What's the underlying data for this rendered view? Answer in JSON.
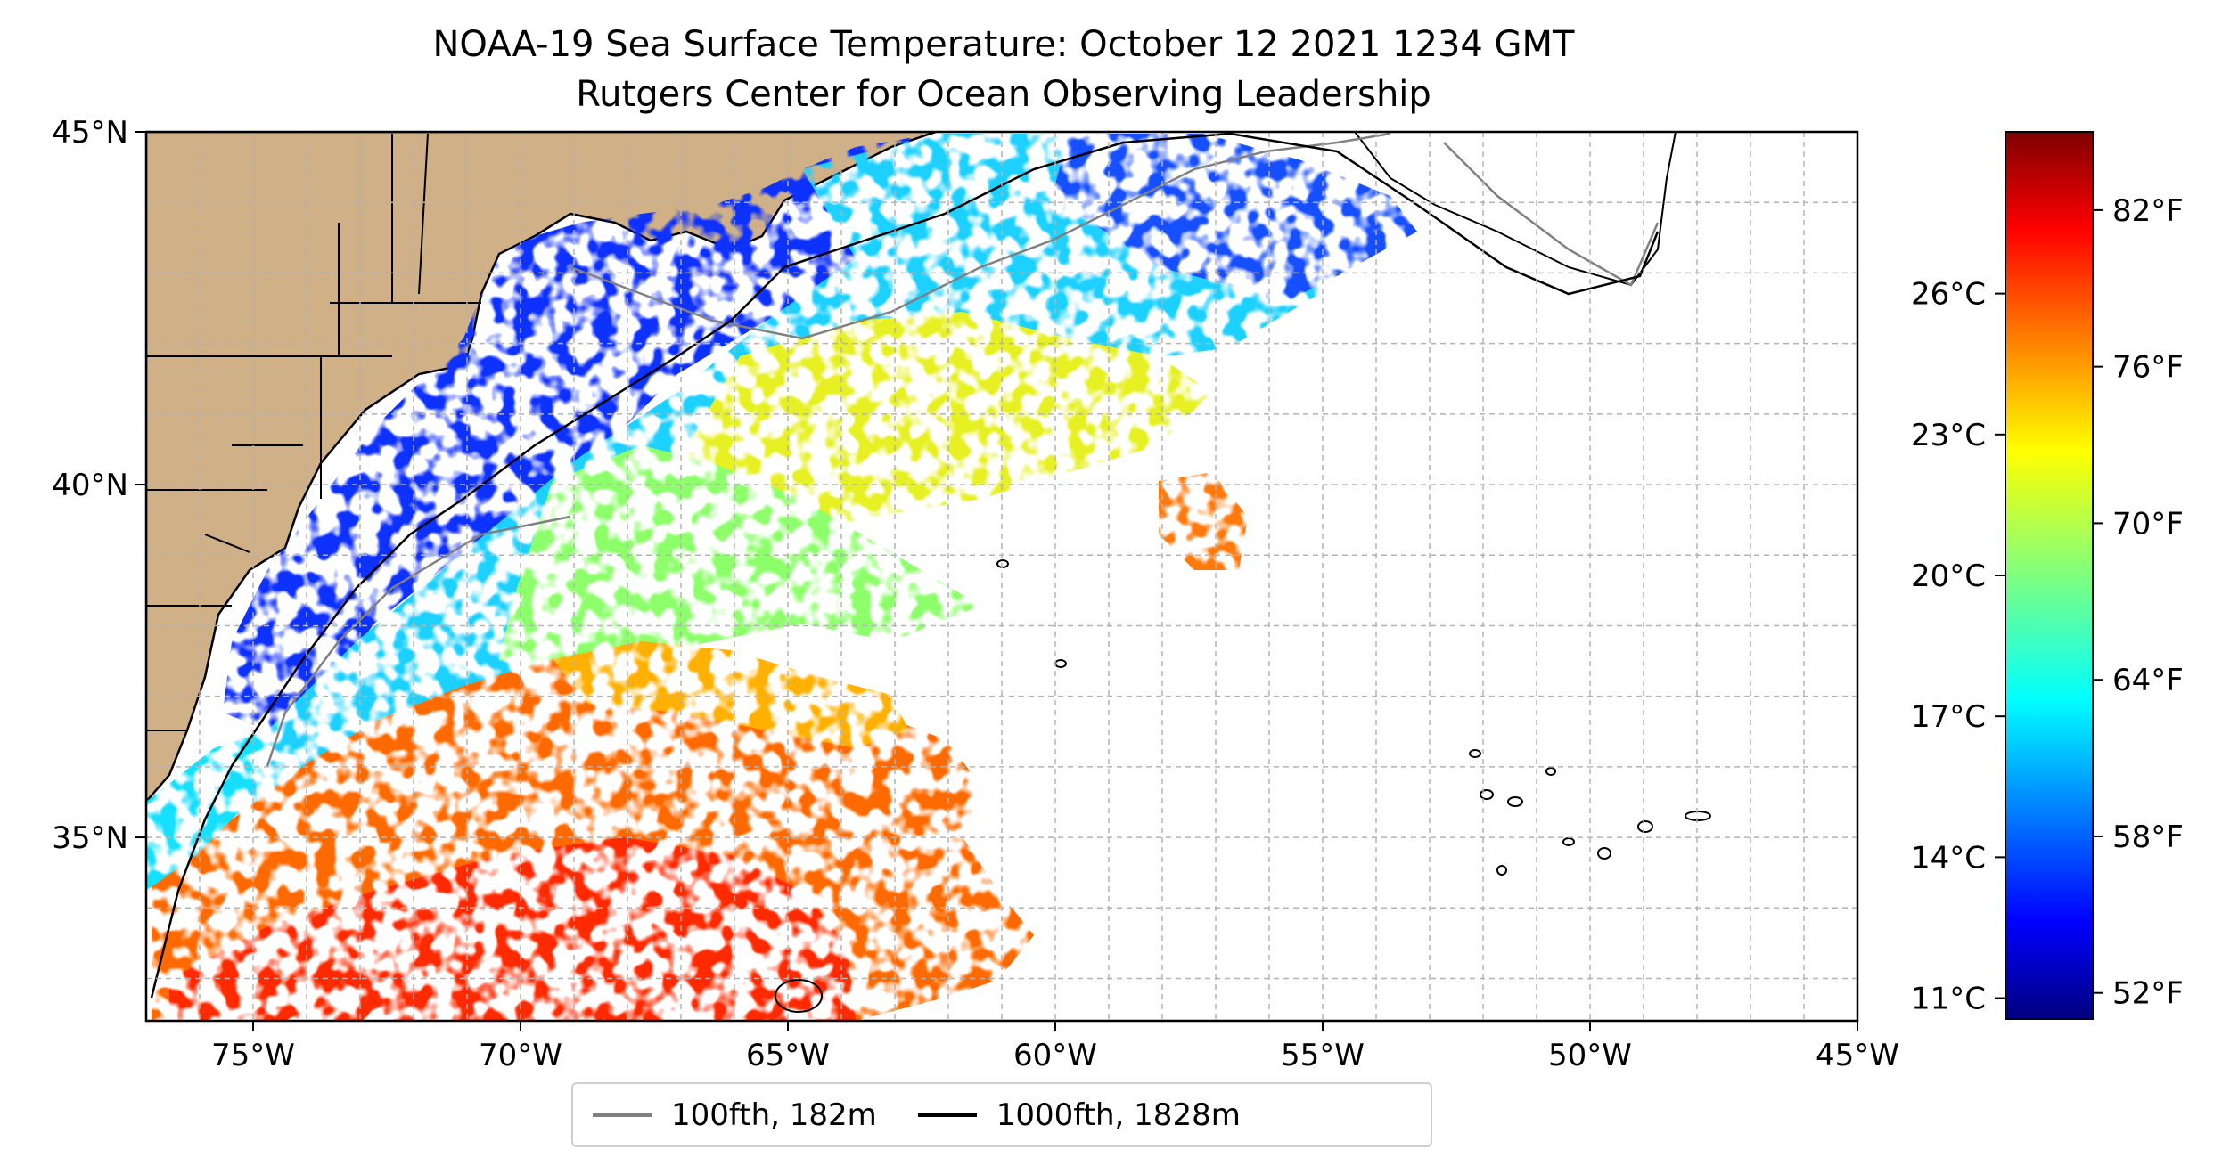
{
  "title": {
    "line1": "NOAA-19 Sea Surface Temperature: October 12 2021 1234 GMT",
    "line2": "Rutgers Center for Ocean Observing Leadership"
  },
  "map": {
    "lon_range": [
      -77,
      -45
    ],
    "lat_range": [
      32.4,
      45
    ],
    "lon_ticks": [
      {
        "value": -75,
        "label": "75°W"
      },
      {
        "value": -70,
        "label": "70°W"
      },
      {
        "value": -65,
        "label": "65°W"
      },
      {
        "value": -60,
        "label": "60°W"
      },
      {
        "value": -55,
        "label": "55°W"
      },
      {
        "value": -50,
        "label": "50°W"
      },
      {
        "value": -45,
        "label": "45°W"
      }
    ],
    "lat_ticks": [
      {
        "value": 35,
        "label": "35°N"
      },
      {
        "value": 40,
        "label": "40°N"
      },
      {
        "value": 45,
        "label": "45°N"
      }
    ],
    "grid": true,
    "grid_color": "#b3b3b3",
    "land_color": "#cfb087",
    "lake_color": "#9fbfe6"
  },
  "colorbar": {
    "colormap": "jet",
    "range_f": [
      51,
      85
    ],
    "celsius_ticks": [
      {
        "value": 11,
        "label": "11°C"
      },
      {
        "value": 14,
        "label": "14°C"
      },
      {
        "value": 17,
        "label": "17°C"
      },
      {
        "value": 20,
        "label": "20°C"
      },
      {
        "value": 23,
        "label": "23°C"
      },
      {
        "value": 26,
        "label": "26°C"
      }
    ],
    "fahrenheit_ticks": [
      {
        "value": 52,
        "label": "52°F"
      },
      {
        "value": 58,
        "label": "58°F"
      },
      {
        "value": 64,
        "label": "64°F"
      },
      {
        "value": 70,
        "label": "70°F"
      },
      {
        "value": 76,
        "label": "76°F"
      },
      {
        "value": 82,
        "label": "82°F"
      }
    ]
  },
  "legend": {
    "items": [
      {
        "label": "100fth, 182m",
        "color": "#808080"
      },
      {
        "label": "1000fth, 1828m",
        "color": "#000000"
      }
    ]
  }
}
